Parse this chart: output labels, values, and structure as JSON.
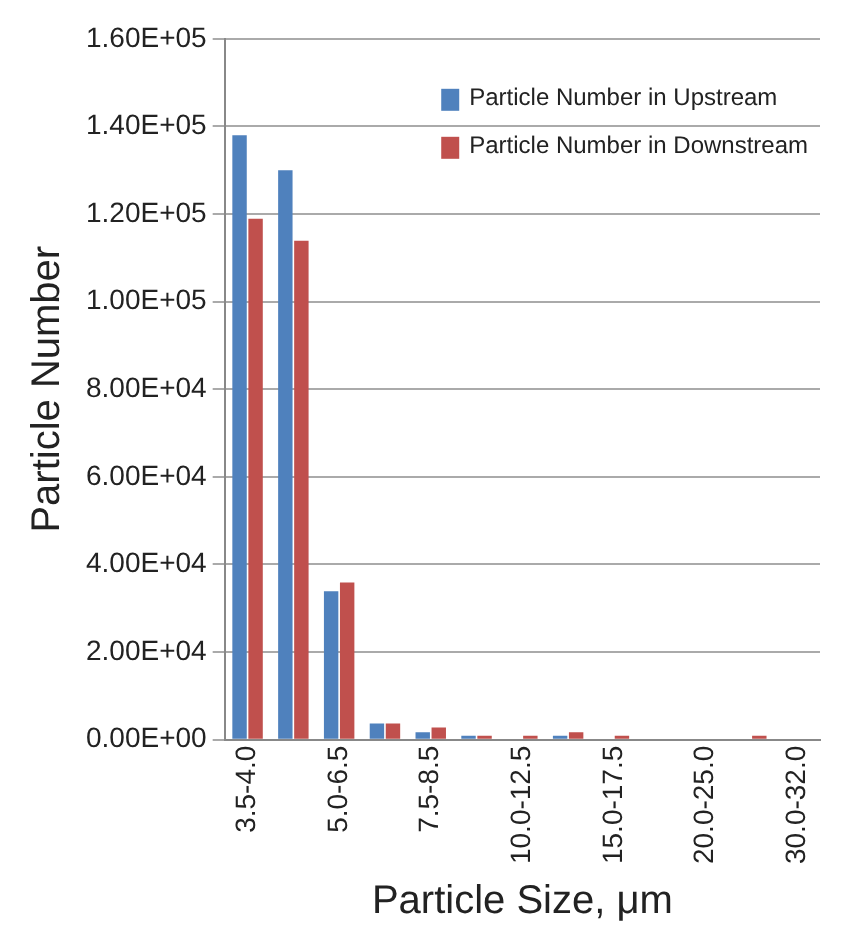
{
  "chart_data": {
    "type": "bar",
    "xlabel": "Particle Size, μm",
    "ylabel": "Particle Number",
    "categories": [
      "3.5-4.0",
      null,
      "5.0-6.5",
      null,
      "7.5-8.5",
      null,
      "10.0-12.5",
      null,
      "15.0-17.5",
      null,
      "20.0-25.0",
      null,
      "30.0-32.0"
    ],
    "series": [
      {
        "name": "Particle Number in Upstream",
        "color": "#4f81bd",
        "values": [
          138000,
          130000,
          33900,
          3700,
          1700,
          900,
          0,
          900,
          0,
          0,
          0,
          0,
          0
        ]
      },
      {
        "name": "Particle Number in Downstream",
        "color": "#c0504d",
        "values": [
          118900,
          113900,
          35900,
          3700,
          2800,
          900,
          900,
          1700,
          900,
          0,
          0,
          900,
          0
        ]
      }
    ],
    "ylim": [
      0,
      160000
    ],
    "yticks": [
      {
        "value": 0,
        "label": "0.00E+00"
      },
      {
        "value": 20000,
        "label": "2.00E+04"
      },
      {
        "value": 40000,
        "label": "4.00E+04"
      },
      {
        "value": 60000,
        "label": "6.00E+04"
      },
      {
        "value": 80000,
        "label": "8.00E+04"
      },
      {
        "value": 100000,
        "label": "1.00E+05"
      },
      {
        "value": 120000,
        "label": "1.20E+05"
      },
      {
        "value": 140000,
        "label": "1.40E+05"
      },
      {
        "value": 160000,
        "label": "1.60E+05"
      }
    ],
    "grid": "y",
    "legend": "top right"
  }
}
